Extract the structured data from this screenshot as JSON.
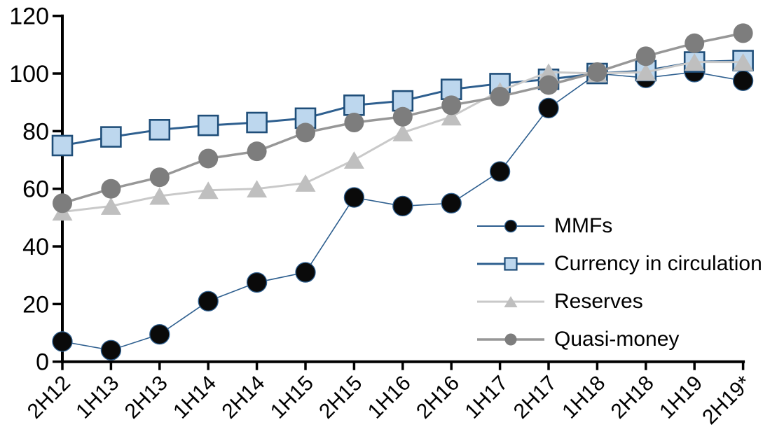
{
  "chart_data": {
    "type": "line",
    "title": "",
    "xlabel": "",
    "ylabel": "",
    "grid": false,
    "legend_position": "inside-right",
    "background_color": "#ffffff",
    "axis_color": "#000000",
    "text_color": "#000000",
    "ylim": [
      0,
      120
    ],
    "yticks": [
      0,
      20,
      40,
      60,
      80,
      100,
      120
    ],
    "categories": [
      "2H12",
      "1H13",
      "2H13",
      "1H14",
      "2H14",
      "1H15",
      "2H15",
      "1H16",
      "2H16",
      "1H17",
      "2H17",
      "1H18",
      "2H18",
      "1H19",
      "2H19*"
    ],
    "series": [
      {
        "name": "MMFs",
        "marker": "circle",
        "line_color": "#2e5f8f",
        "line_width": 1.6,
        "marker_fill": "#0a0a0a",
        "marker_stroke": "#2e5f8f",
        "values": [
          7,
          4,
          9.5,
          21,
          27.5,
          31,
          57,
          54,
          55,
          66,
          88,
          100,
          98.5,
          100.5,
          97.5
        ]
      },
      {
        "name": "Currency in circulation",
        "marker": "square",
        "line_color": "#2e5f8f",
        "line_width": 3,
        "marker_fill": "#bdd7ee",
        "marker_stroke": "#1f4e79",
        "values": [
          75,
          78,
          80.5,
          82,
          83,
          84.5,
          89,
          90.5,
          94.5,
          96.5,
          98,
          100,
          101,
          104,
          104.5
        ]
      },
      {
        "name": "Reserves",
        "marker": "triangle",
        "line_color": "#c9c9c9",
        "line_width": 3,
        "marker_fill": "#bfbfbf",
        "marker_stroke": "none",
        "values": [
          52,
          54,
          57.5,
          59.5,
          60,
          62,
          70,
          79.5,
          85,
          94,
          100.5,
          100,
          100.5,
          104,
          104
        ]
      },
      {
        "name": "Quasi-money",
        "marker": "circle",
        "line_color": "#979797",
        "line_width": 3.5,
        "marker_fill": "#7d7d7d",
        "marker_stroke": "none",
        "values": [
          55,
          60,
          64,
          70.5,
          73,
          79.5,
          83,
          85,
          89,
          92,
          96,
          100.5,
          106,
          110.5,
          114
        ]
      }
    ]
  }
}
